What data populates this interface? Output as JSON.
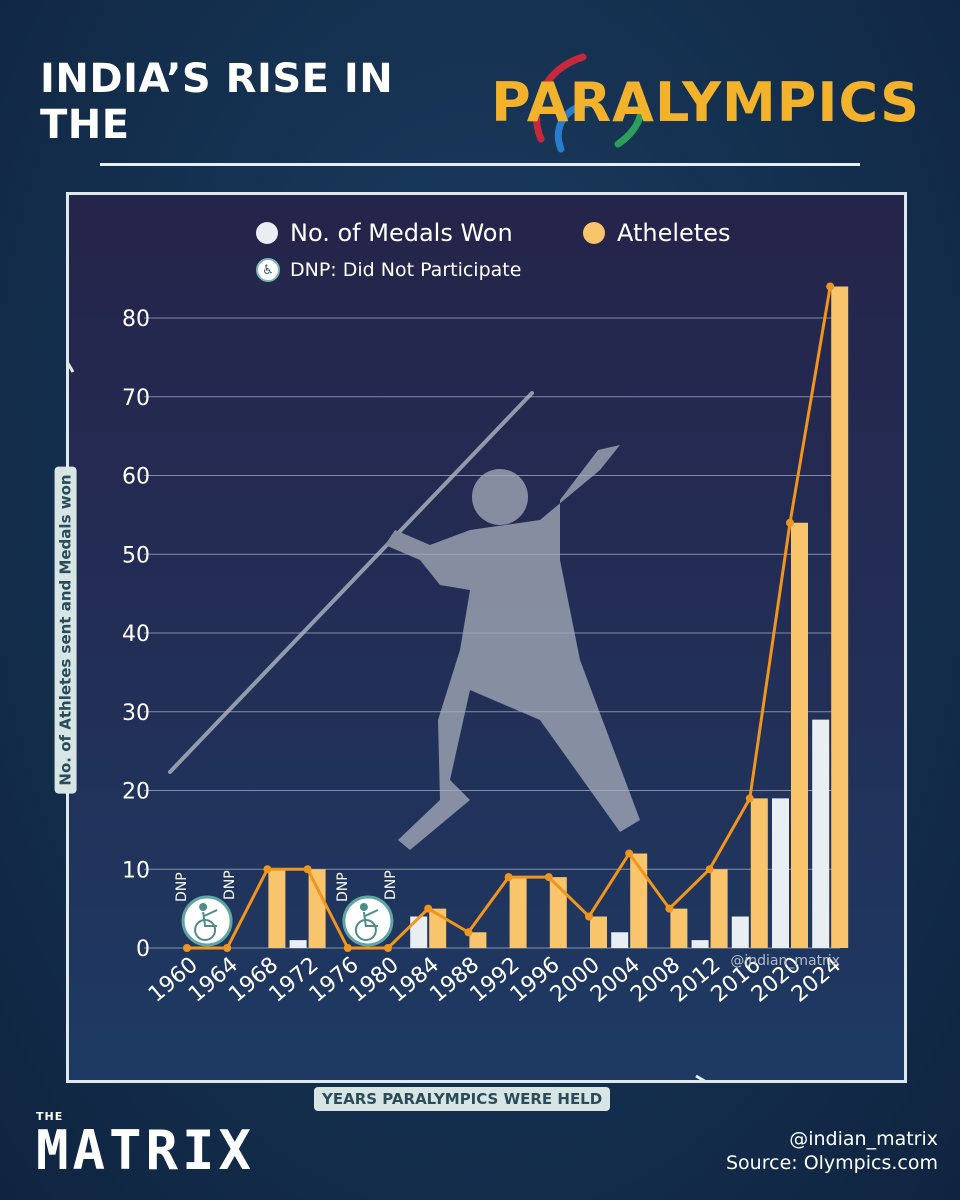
{
  "title": {
    "part1": "INDIA’S RISE IN THE",
    "part2": "PARALYMPICS"
  },
  "legend": {
    "medals": "No. of Medals Won",
    "athletes": "Atheletes",
    "dnp": "DNP: Did Not Participate"
  },
  "colors": {
    "medals": "#e9eef3",
    "athletes": "#f8c46c",
    "line": "#f0961e",
    "title_accent": "#f3b22c"
  },
  "axis": {
    "ylabel": "No. of Athletes sent and Medals won",
    "xlabel": "YEARS PARALYMPICS WERE HELD"
  },
  "watermark": "@indian_matrix",
  "footer": {
    "handle": "@indian_matrix",
    "source": "Source: Olympics.com"
  },
  "brand": {
    "small": "THE",
    "big": "MATRIX"
  },
  "chart_data": {
    "type": "bar",
    "categories": [
      "1960",
      "1964",
      "1968",
      "1972",
      "1976",
      "1980",
      "1984",
      "1988",
      "1992",
      "1996",
      "2000",
      "2004",
      "2008",
      "2012",
      "2016",
      "2020",
      "2024"
    ],
    "series": [
      {
        "name": "No. of Medals Won",
        "type": "bar",
        "values": [
          0,
          0,
          0,
          1,
          0,
          0,
          4,
          0,
          0,
          0,
          0,
          2,
          0,
          1,
          4,
          19,
          29
        ]
      },
      {
        "name": "Atheletes",
        "type": "bar+line",
        "values": [
          0,
          0,
          10,
          10,
          0,
          0,
          5,
          2,
          9,
          9,
          4,
          12,
          5,
          10,
          19,
          54,
          84
        ]
      }
    ],
    "dnp_years": [
      "1960",
      "1964",
      "1976",
      "1980"
    ],
    "dnp_label": "DNP",
    "ylim": [
      0,
      84
    ],
    "yticks": [
      0,
      10,
      20,
      30,
      40,
      50,
      60,
      70,
      80
    ],
    "grid": true,
    "legend_position": "top"
  }
}
